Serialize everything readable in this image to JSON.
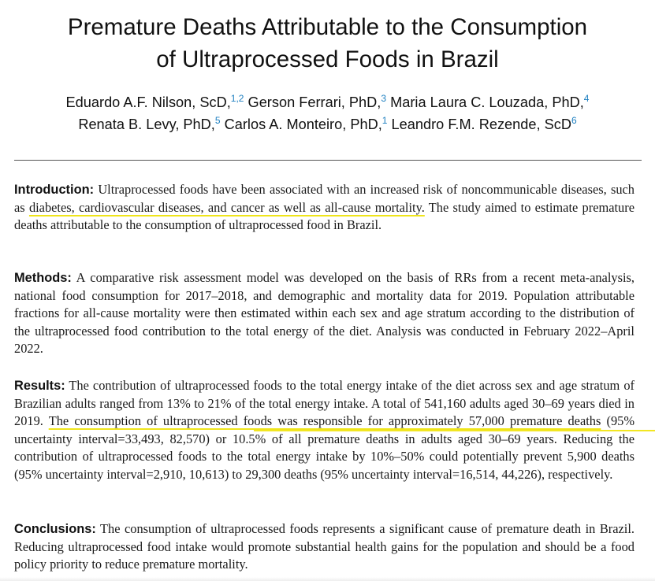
{
  "title": {
    "line1": "Premature Deaths Attributable to the Consumption",
    "line2": "of Ultraprocessed Foods in Brazil"
  },
  "authors": [
    {
      "name": "Eduardo A.F. Nilson, ScD,",
      "aff": "1,2"
    },
    {
      "name": "Gerson Ferrari, PhD,",
      "aff": "3"
    },
    {
      "name": "Maria Laura C. Louzada, PhD,",
      "aff": "4"
    },
    {
      "name": "Renata B. Levy, PhD,",
      "aff": "5"
    },
    {
      "name": "Carlos A. Monteiro, PhD,",
      "aff": "1"
    },
    {
      "name": "Leandro F.M. Rezende, ScD",
      "aff": "6"
    }
  ],
  "abstract": {
    "introduction": {
      "label": "Introduction:",
      "text_a": " Ultraprocessed foods have been associated with an increased risk of noncommunicable diseases, such as ",
      "highlight": "diabetes, cardiovascular diseases, and cancer as well as all-cause mortality.",
      "text_b": " The study aimed to estimate premature deaths attributable to the consumption of ultraprocessed food in Brazil."
    },
    "methods": {
      "label": "Methods:",
      "text": " A comparative risk assessment model was developed on the basis of RRs from a recent meta-analysis, national food consumption for 2017–2018, and demographic and mortality data for 2019. Population attributable fractions for all-cause mortality were then estimated within each sex and age stratum according to the distribution of the ultraprocessed food contribution to the total energy of the diet. Analysis was conducted in February 2022–April 2022."
    },
    "results": {
      "label": "Results:",
      "text_a": " The contribution of ultraprocessed foods to the total energy intake of the diet across sex and age stratum of Brazilian adults ranged from 13% to 21% of the total energy intake. A total of 541,160 adults aged 30–69 years died in 2019. ",
      "highlight": "The consumption of ultraprocessed foods was responsible for approximately 57,000 premature deaths",
      "text_b": " (95% uncertainty interval=33,493, 82,570) or 10.5% of all premature deaths in adults aged 30–69 years. Reducing the contribution of ultraprocessed foods to the total energy intake by 10%–50% could potentially prevent 5,900 deaths (95% uncertainty interval=2,910, 10,613) to 29,300 deaths (95% uncertainty interval=16,514, 44,226), respectively."
    },
    "conclusions": {
      "label": "Conclusions:",
      "text": " The consumption of ultraprocessed foods represents a significant cause of premature death in Brazil. Reducing ultraprocessed food intake would promote substantial health gains for the population and should be a food policy priority to reduce premature mortality."
    }
  },
  "colors": {
    "highlight": "#efe41a",
    "affiliation": "#1d7fc0"
  }
}
